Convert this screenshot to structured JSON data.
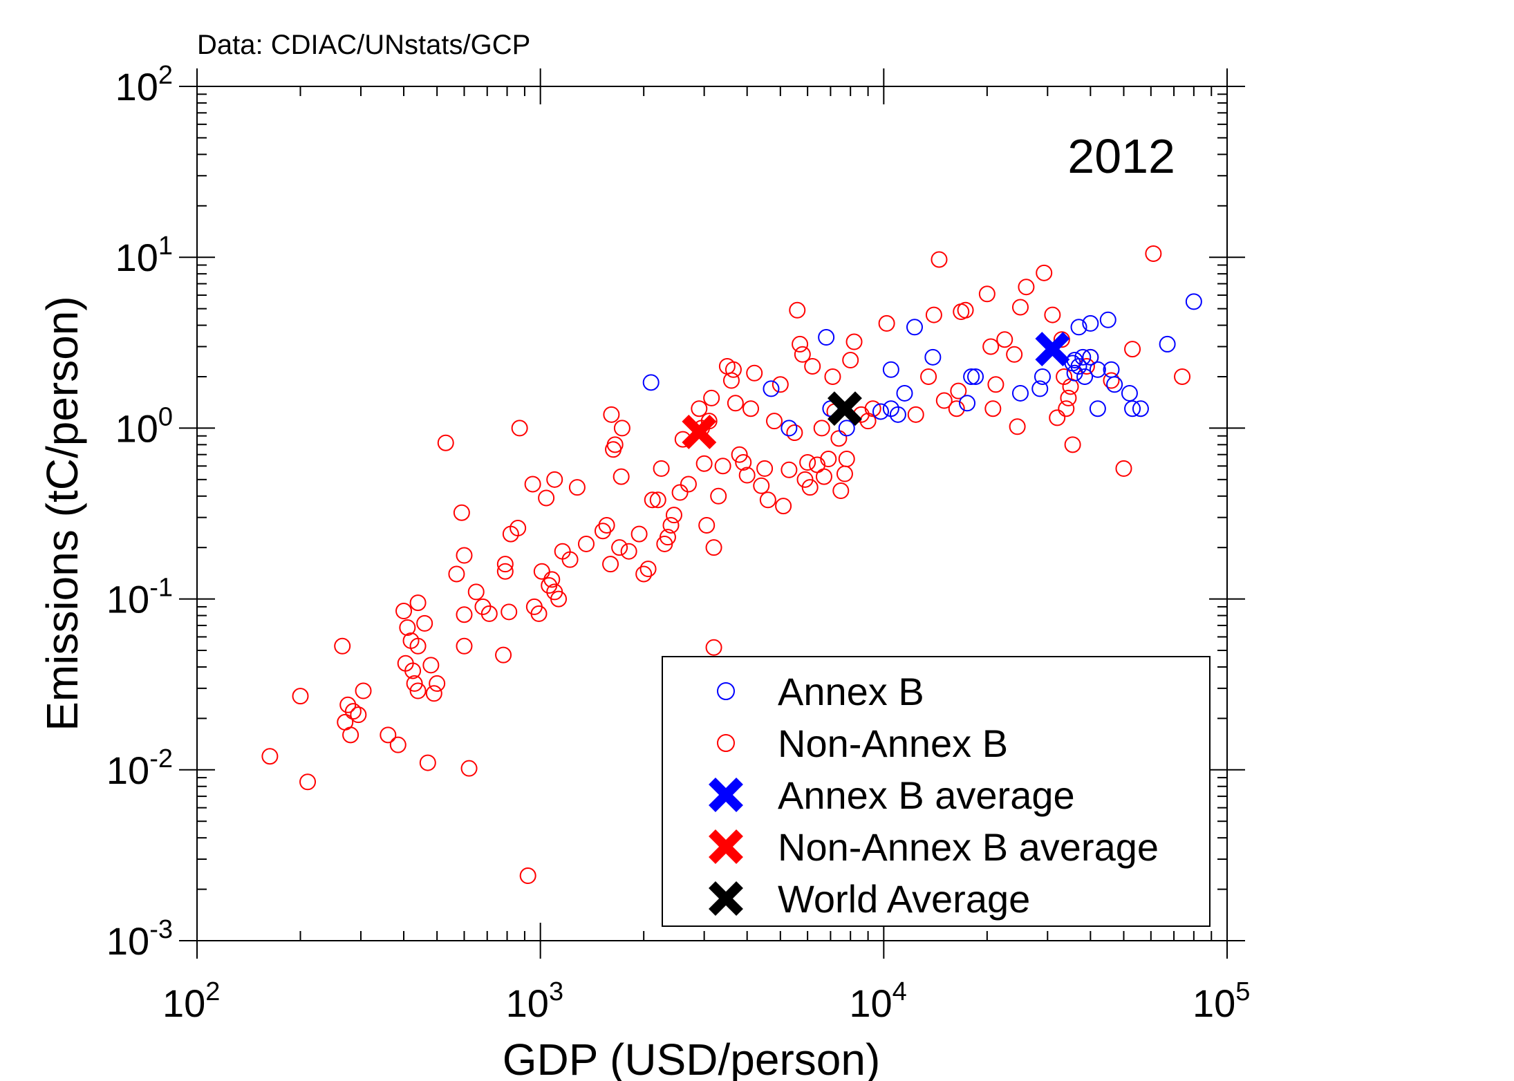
{
  "source_note": "Data: CDIAC/UNstats/GCP",
  "colors": {
    "annex_b": "#0000ff",
    "non_annex_b": "#ff0000",
    "world": "#000000",
    "source_note": "#888888"
  },
  "chart_data": {
    "type": "scatter",
    "year_label": "2012",
    "xlabel": "GDP (USD/person)",
    "ylabel": "Emissions (tC/person)",
    "xscale": "log",
    "yscale": "log",
    "xlim": [
      100,
      100000
    ],
    "ylim": [
      0.001,
      100
    ],
    "x_ticks": [
      {
        "base": "10",
        "exp": "2",
        "value": 100
      },
      {
        "base": "10",
        "exp": "3",
        "value": 1000
      },
      {
        "base": "10",
        "exp": "4",
        "value": 10000
      },
      {
        "base": "10",
        "exp": "5",
        "value": 100000
      }
    ],
    "y_ticks": [
      {
        "base": "10",
        "exp": "-3",
        "value": 0.001
      },
      {
        "base": "10",
        "exp": "-2",
        "value": 0.01
      },
      {
        "base": "10",
        "exp": "-1",
        "value": 0.1
      },
      {
        "base": "10",
        "exp": "0",
        "value": 1
      },
      {
        "base": "10",
        "exp": "1",
        "value": 10
      },
      {
        "base": "10",
        "exp": "2",
        "value": 100
      }
    ],
    "grid": false,
    "legend_position": "bottom-right",
    "legend": [
      {
        "label": "Annex B",
        "marker": "circle",
        "color": "#0000ff"
      },
      {
        "label": "Non-Annex B",
        "marker": "circle",
        "color": "#ff0000"
      },
      {
        "label": "Annex B average",
        "marker": "cross",
        "color": "#0000ff"
      },
      {
        "label": "Non-Annex B average",
        "marker": "cross",
        "color": "#ff0000"
      },
      {
        "label": "World Average",
        "marker": "cross",
        "color": "#000000"
      }
    ],
    "series": [
      {
        "name": "Annex B",
        "marker": "circle",
        "color": "#0000ff",
        "points": [
          [
            2100,
            1.85
          ],
          [
            4700,
            1.7
          ],
          [
            5300,
            1.0
          ],
          [
            6800,
            3.4
          ],
          [
            7000,
            1.3
          ],
          [
            7800,
            1.0
          ],
          [
            9800,
            1.25
          ],
          [
            10500,
            2.2
          ],
          [
            10500,
            1.3
          ],
          [
            11000,
            1.2
          ],
          [
            11500,
            1.6
          ],
          [
            12300,
            3.9
          ],
          [
            13900,
            2.6
          ],
          [
            18500,
            2.0
          ],
          [
            18000,
            2.0
          ],
          [
            17500,
            1.4
          ],
          [
            25000,
            1.6
          ],
          [
            28500,
            1.7
          ],
          [
            29000,
            2.0
          ],
          [
            35500,
            2.4
          ],
          [
            36000,
            2.1
          ],
          [
            37000,
            2.3
          ],
          [
            38500,
            2.0
          ],
          [
            38000,
            2.6
          ],
          [
            37000,
            3.9
          ],
          [
            40000,
            4.1
          ],
          [
            40000,
            2.6
          ],
          [
            42000,
            2.2
          ],
          [
            45000,
            4.3
          ],
          [
            46000,
            2.2
          ],
          [
            47000,
            1.8
          ],
          [
            52000,
            1.6
          ],
          [
            53000,
            1.3
          ],
          [
            56000,
            1.3
          ],
          [
            67000,
            3.1
          ],
          [
            80000,
            5.5
          ],
          [
            42000,
            1.3
          ],
          [
            36000,
            2.5
          ]
        ]
      },
      {
        "name": "Non-Annex B",
        "marker": "circle",
        "color": "#ff0000",
        "points": [
          [
            163,
            0.012
          ],
          [
            200,
            0.027
          ],
          [
            210,
            0.0085
          ],
          [
            265,
            0.053
          ],
          [
            270,
            0.019
          ],
          [
            275,
            0.024
          ],
          [
            280,
            0.016
          ],
          [
            285,
            0.022
          ],
          [
            295,
            0.021
          ],
          [
            305,
            0.029
          ],
          [
            360,
            0.016
          ],
          [
            385,
            0.014
          ],
          [
            400,
            0.085
          ],
          [
            405,
            0.042
          ],
          [
            410,
            0.068
          ],
          [
            420,
            0.057
          ],
          [
            425,
            0.038
          ],
          [
            430,
            0.032
          ],
          [
            440,
            0.095
          ],
          [
            440,
            0.053
          ],
          [
            440,
            0.029
          ],
          [
            460,
            0.072
          ],
          [
            470,
            0.011
          ],
          [
            480,
            0.041
          ],
          [
            490,
            0.028
          ],
          [
            500,
            0.032
          ],
          [
            530,
            0.82
          ],
          [
            570,
            0.14
          ],
          [
            590,
            0.32
          ],
          [
            600,
            0.18
          ],
          [
            600,
            0.081
          ],
          [
            600,
            0.053
          ],
          [
            620,
            0.0102
          ],
          [
            650,
            0.11
          ],
          [
            680,
            0.09
          ],
          [
            710,
            0.082
          ],
          [
            780,
            0.047
          ],
          [
            790,
            0.16
          ],
          [
            790,
            0.145
          ],
          [
            810,
            0.084
          ],
          [
            820,
            0.24
          ],
          [
            860,
            0.26
          ],
          [
            870,
            1.0
          ],
          [
            920,
            0.0024
          ],
          [
            950,
            0.47
          ],
          [
            960,
            0.09
          ],
          [
            990,
            0.082
          ],
          [
            1010,
            0.145
          ],
          [
            1040,
            0.39
          ],
          [
            1060,
            0.12
          ],
          [
            1080,
            0.13
          ],
          [
            1100,
            0.11
          ],
          [
            1100,
            0.5
          ],
          [
            1130,
            0.1
          ],
          [
            1160,
            0.19
          ],
          [
            1220,
            0.17
          ],
          [
            1280,
            0.45
          ],
          [
            1360,
            0.21
          ],
          [
            1520,
            0.25
          ],
          [
            1560,
            0.27
          ],
          [
            1600,
            0.16
          ],
          [
            1610,
            1.2
          ],
          [
            1630,
            0.75
          ],
          [
            1650,
            0.8
          ],
          [
            1700,
            0.2
          ],
          [
            1720,
            0.52
          ],
          [
            1730,
            1.0
          ],
          [
            1810,
            0.19
          ],
          [
            1940,
            0.24
          ],
          [
            2000,
            0.14
          ],
          [
            2060,
            0.15
          ],
          [
            2120,
            0.38
          ],
          [
            2200,
            0.38
          ],
          [
            2250,
            0.58
          ],
          [
            2300,
            0.21
          ],
          [
            2350,
            0.23
          ],
          [
            2400,
            0.27
          ],
          [
            2450,
            0.31
          ],
          [
            2550,
            0.42
          ],
          [
            2600,
            0.86
          ],
          [
            2700,
            0.47
          ],
          [
            2900,
            1.3
          ],
          [
            2950,
            1.0
          ],
          [
            3000,
            0.62
          ],
          [
            3050,
            0.27
          ],
          [
            3100,
            1.1
          ],
          [
            3150,
            1.5
          ],
          [
            3200,
            0.2
          ],
          [
            3300,
            0.4
          ],
          [
            3400,
            0.6
          ],
          [
            3500,
            2.3
          ],
          [
            3600,
            1.9
          ],
          [
            3650,
            2.2
          ],
          [
            3700,
            1.4
          ],
          [
            3800,
            0.7
          ],
          [
            3900,
            0.63
          ],
          [
            4000,
            0.53
          ],
          [
            4100,
            1.3
          ],
          [
            4200,
            2.1
          ],
          [
            4400,
            0.46
          ],
          [
            4500,
            0.58
          ],
          [
            4600,
            0.38
          ],
          [
            4800,
            1.1
          ],
          [
            5000,
            1.8
          ],
          [
            5100,
            0.35
          ],
          [
            5300,
            0.57
          ],
          [
            5500,
            0.94
          ],
          [
            5600,
            4.9
          ],
          [
            5700,
            3.1
          ],
          [
            5800,
            2.7
          ],
          [
            5900,
            0.5
          ],
          [
            6000,
            0.63
          ],
          [
            6100,
            0.45
          ],
          [
            6200,
            2.3
          ],
          [
            6400,
            0.61
          ],
          [
            6600,
            1.0
          ],
          [
            6700,
            0.52
          ],
          [
            6900,
            0.66
          ],
          [
            7100,
            2.0
          ],
          [
            7200,
            1.25
          ],
          [
            7400,
            0.87
          ],
          [
            7500,
            0.43
          ],
          [
            7700,
            0.54
          ],
          [
            7800,
            0.66
          ],
          [
            8000,
            2.5
          ],
          [
            8200,
            3.2
          ],
          [
            8600,
            1.2
          ],
          [
            9000,
            1.1
          ],
          [
            9300,
            1.3
          ],
          [
            10200,
            4.1
          ],
          [
            12400,
            1.2
          ],
          [
            13500,
            2.0
          ],
          [
            14000,
            4.6
          ],
          [
            14500,
            9.7
          ],
          [
            15000,
            1.45
          ],
          [
            16300,
            1.3
          ],
          [
            16500,
            1.65
          ],
          [
            16800,
            4.8
          ],
          [
            17300,
            4.9
          ],
          [
            20000,
            6.1
          ],
          [
            20500,
            3.0
          ],
          [
            20800,
            1.3
          ],
          [
            21200,
            1.8
          ],
          [
            22500,
            3.3
          ],
          [
            24000,
            2.7
          ],
          [
            24500,
            1.02
          ],
          [
            25000,
            5.1
          ],
          [
            26000,
            6.7
          ],
          [
            29300,
            8.1
          ],
          [
            31000,
            4.6
          ],
          [
            32000,
            1.15
          ],
          [
            33000,
            3.3
          ],
          [
            33500,
            2.0
          ],
          [
            34000,
            1.3
          ],
          [
            34500,
            1.5
          ],
          [
            35000,
            1.75
          ],
          [
            35500,
            0.8
          ],
          [
            39000,
            2.3
          ],
          [
            40000,
            2.6
          ],
          [
            46000,
            1.9
          ],
          [
            50000,
            0.58
          ],
          [
            53000,
            2.9
          ],
          [
            61000,
            10.5
          ],
          [
            74000,
            2.0
          ],
          [
            3200,
            0.052
          ]
        ]
      },
      {
        "name": "Annex B average",
        "marker": "cross",
        "color": "#0000ff",
        "points": [
          [
            31000,
            2.9
          ]
        ]
      },
      {
        "name": "Non-Annex B average",
        "marker": "cross",
        "color": "#ff0000",
        "points": [
          [
            2900,
            0.95
          ]
        ]
      },
      {
        "name": "World Average",
        "marker": "cross",
        "color": "#000000",
        "points": [
          [
            7700,
            1.3
          ]
        ]
      }
    ]
  }
}
